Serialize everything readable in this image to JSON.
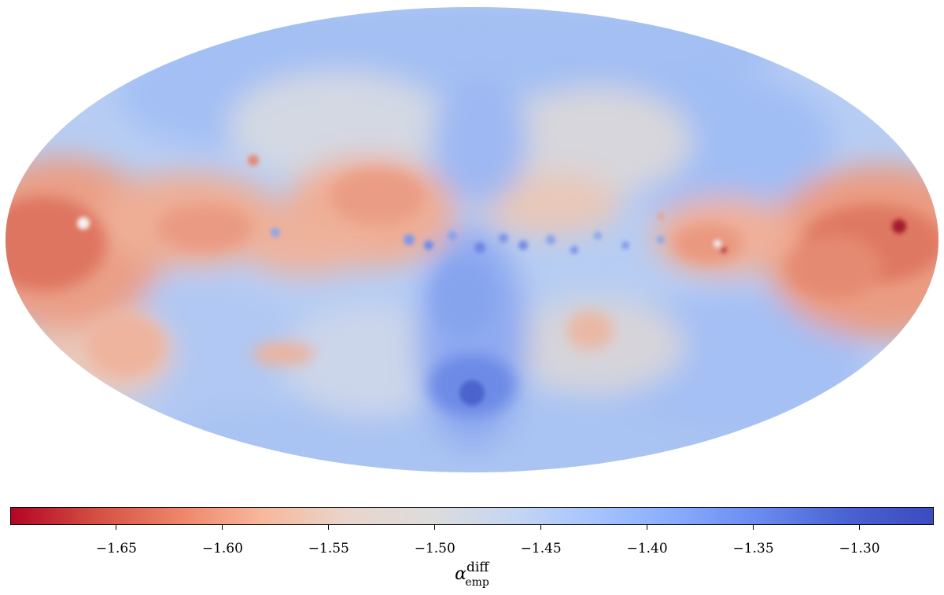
{
  "map": {
    "projection": "Mollweide",
    "colormap": "coolwarm (reversed)"
  },
  "colorbar": {
    "min": -1.7,
    "max": -1.265,
    "colors": [
      "#b40426",
      "#d44e41",
      "#ee8468",
      "#f7b89c",
      "#e9d5cb",
      "#dddcdc",
      "#c5d6f2",
      "#a5c3fe",
      "#86a9fc",
      "#6788ee",
      "#4961d2",
      "#3b4cc0"
    ],
    "ticks": [
      {
        "value": -1.65,
        "label": "−1.65"
      },
      {
        "value": -1.6,
        "label": "−1.60"
      },
      {
        "value": -1.55,
        "label": "−1.55"
      },
      {
        "value": -1.5,
        "label": "−1.50"
      },
      {
        "value": -1.45,
        "label": "−1.45"
      },
      {
        "value": -1.4,
        "label": "−1.40"
      },
      {
        "value": -1.35,
        "label": "−1.35"
      },
      {
        "value": -1.3,
        "label": "−1.30"
      }
    ],
    "label": {
      "symbol": "α",
      "superscript": "diff",
      "subscript": "emp"
    }
  }
}
